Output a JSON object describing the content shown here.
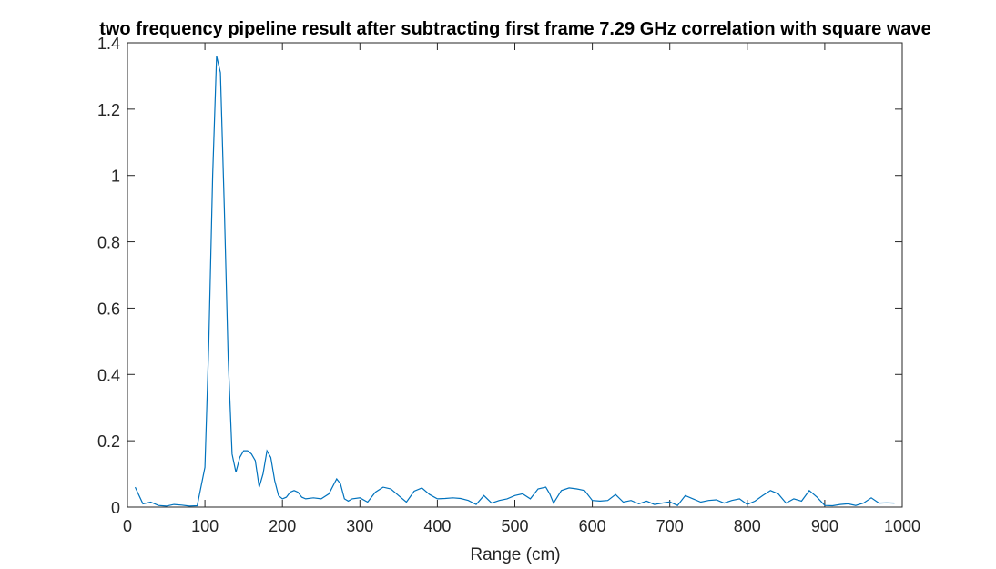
{
  "chart_data": {
    "type": "line",
    "title": "two frequency pipeline result after subtracting first frame 7.29 GHz correlation with square wave",
    "xlabel": "Range (cm)",
    "ylabel": "",
    "xlim": [
      0,
      1000
    ],
    "ylim": [
      0,
      1.4
    ],
    "xticks": [
      0,
      100,
      200,
      300,
      400,
      500,
      600,
      700,
      800,
      900,
      1000
    ],
    "yticks": [
      0,
      0.2,
      0.4,
      0.6,
      0.8,
      1,
      1.2,
      1.4
    ],
    "xtick_labels": [
      "0",
      "100",
      "200",
      "300",
      "400",
      "500",
      "600",
      "700",
      "800",
      "900",
      "1000"
    ],
    "ytick_labels": [
      "0",
      "0.2",
      "0.4",
      "0.6",
      "0.8",
      "1",
      "1.2",
      "1.4"
    ],
    "grid": false,
    "line_color": "#0072BD",
    "series": [
      {
        "x": [
          10,
          20,
          30,
          40,
          50,
          60,
          70,
          80,
          90,
          100,
          105,
          110,
          115,
          120,
          125,
          130,
          135,
          140,
          145,
          150,
          155,
          160,
          165,
          170,
          175,
          180,
          185,
          190,
          195,
          200,
          205,
          210,
          215,
          220,
          225,
          230,
          240,
          250,
          260,
          270,
          275,
          280,
          285,
          290,
          300,
          310,
          320,
          330,
          340,
          350,
          360,
          370,
          380,
          390,
          400,
          410,
          420,
          430,
          440,
          450,
          460,
          470,
          480,
          490,
          500,
          510,
          520,
          530,
          540,
          545,
          550,
          560,
          570,
          580,
          590,
          600,
          610,
          620,
          630,
          640,
          650,
          660,
          670,
          680,
          690,
          700,
          710,
          720,
          730,
          740,
          750,
          760,
          770,
          780,
          790,
          800,
          810,
          820,
          830,
          840,
          850,
          860,
          870,
          880,
          890,
          900,
          910,
          920,
          930,
          940,
          950,
          960,
          970,
          980,
          990
        ],
        "y": [
          0.06,
          0.01,
          0.015,
          0.005,
          0.003,
          0.008,
          0.006,
          0.003,
          0.004,
          0.12,
          0.5,
          1.0,
          1.36,
          1.31,
          0.9,
          0.45,
          0.16,
          0.105,
          0.15,
          0.17,
          0.17,
          0.16,
          0.14,
          0.06,
          0.1,
          0.17,
          0.15,
          0.08,
          0.035,
          0.025,
          0.03,
          0.045,
          0.05,
          0.045,
          0.03,
          0.025,
          0.028,
          0.025,
          0.04,
          0.085,
          0.07,
          0.025,
          0.018,
          0.025,
          0.028,
          0.015,
          0.045,
          0.06,
          0.055,
          0.035,
          0.015,
          0.048,
          0.058,
          0.038,
          0.025,
          0.026,
          0.028,
          0.026,
          0.02,
          0.008,
          0.035,
          0.012,
          0.02,
          0.025,
          0.035,
          0.04,
          0.025,
          0.055,
          0.06,
          0.04,
          0.012,
          0.05,
          0.058,
          0.055,
          0.05,
          0.02,
          0.018,
          0.02,
          0.038,
          0.015,
          0.02,
          0.01,
          0.018,
          0.008,
          0.012,
          0.016,
          0.005,
          0.035,
          0.025,
          0.015,
          0.02,
          0.022,
          0.012,
          0.02,
          0.025,
          0.008,
          0.018,
          0.035,
          0.05,
          0.04,
          0.012,
          0.025,
          0.018,
          0.05,
          0.03,
          0.005,
          0.004,
          0.008,
          0.01,
          0.005,
          0.012,
          0.028,
          0.012,
          0.013,
          0.012
        ]
      }
    ]
  }
}
